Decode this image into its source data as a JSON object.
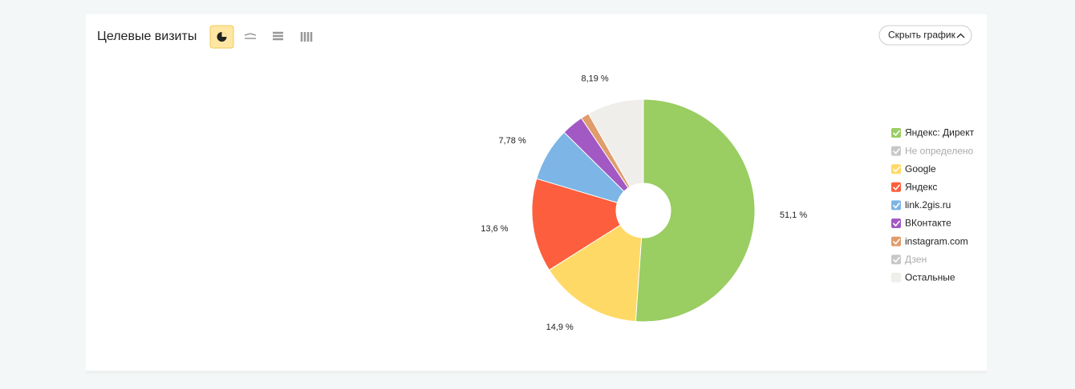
{
  "controls": {
    "hide_chart": "Скрыть график"
  },
  "chart_data": {
    "type": "pie",
    "title": "Целевые визиты",
    "categories": [
      "Яндекс: Директ",
      "Не определено",
      "Google",
      "Яндекс",
      "link.2gis.ru",
      "ВКонтакте",
      "instagram.com",
      "Дзен",
      "Остальные"
    ],
    "values": [
      51.1,
      null,
      14.9,
      13.6,
      7.78,
      3.2,
      1.2,
      null,
      8.19
    ],
    "value_labels": [
      "51,1 %",
      null,
      "14,9 %",
      "13,6 %",
      "7,78 %",
      null,
      null,
      null,
      "8,19 %"
    ],
    "colors": [
      "#9acd62",
      "#c8c8c8",
      "#ffd966",
      "#fd5e3d",
      "#7cb5e6",
      "#a259c4",
      "#e09c6c",
      "#c8c8c8",
      "#f0eeea"
    ],
    "enabled": [
      true,
      false,
      true,
      true,
      true,
      true,
      true,
      false,
      true
    ]
  }
}
